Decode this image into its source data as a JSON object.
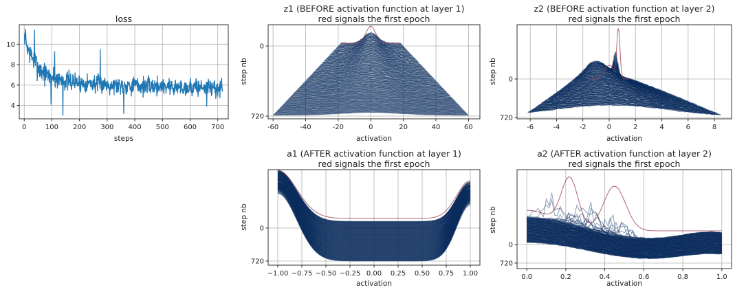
{
  "chart_data": [
    {
      "id": "loss",
      "type": "line",
      "title": "loss",
      "xlabel": "steps",
      "ylabel": "",
      "xlim": [
        -18,
        738
      ],
      "ylim": [
        2.7,
        11.9
      ],
      "xticks": [
        0,
        100,
        200,
        300,
        400,
        500,
        600,
        700
      ],
      "yticks": [
        4,
        6,
        8,
        10
      ],
      "grid": true,
      "series": [
        {
          "color": "#1f77b4",
          "x": [
            0,
            10,
            20,
            30,
            40,
            50,
            60,
            70,
            80,
            90,
            100,
            110,
            120,
            130,
            140,
            150,
            160,
            170,
            180,
            190,
            200,
            220,
            240,
            260,
            280,
            300,
            320,
            340,
            360,
            380,
            400,
            420,
            440,
            460,
            480,
            500,
            520,
            540,
            560,
            580,
            600,
            620,
            640,
            660,
            680,
            700,
            718
          ],
          "y": [
            10.8,
            9.8,
            9.1,
            8.7,
            8.2,
            7.8,
            7.4,
            7.2,
            7.0,
            6.9,
            6.8,
            6.7,
            6.6,
            6.5,
            6.5,
            6.4,
            6.4,
            6.3,
            6.3,
            6.3,
            6.2,
            6.2,
            6.2,
            6.1,
            6.1,
            6.1,
            6.0,
            6.0,
            6.0,
            6.0,
            6.0,
            5.9,
            5.9,
            5.9,
            5.9,
            5.9,
            5.9,
            5.8,
            5.8,
            5.8,
            5.8,
            5.8,
            5.8,
            5.8,
            5.7,
            5.7,
            5.7
          ],
          "spread": [
            0.6,
            1.0,
            1.2,
            1.3,
            1.4,
            1.3,
            1.3,
            1.2,
            1.2,
            1.2,
            1.2,
            1.2,
            1.1,
            1.1,
            1.1,
            1.1,
            1.1,
            1.0,
            1.0,
            1.0,
            1.0,
            1.0,
            1.0,
            1.0,
            1.0,
            1.0,
            1.0,
            1.0,
            1.0,
            1.0,
            1.0,
            1.0,
            1.0,
            1.0,
            1.0,
            1.0,
            1.0,
            1.0,
            1.0,
            1.0,
            1.0,
            1.0,
            1.0,
            1.0,
            1.0,
            1.0,
            1.0
          ],
          "spikes": [
            [
              5,
              11.5
            ],
            [
              37,
              11.4
            ],
            [
              110,
              9.3
            ],
            [
              275,
              9.5
            ],
            [
              140,
              3.0
            ],
            [
              360,
              3.2
            ],
            [
              97,
              4.1
            ],
            [
              660,
              3.9
            ]
          ]
        }
      ]
    },
    {
      "id": "z1",
      "type": "line",
      "title": "z1 (BEFORE activation function at layer 1)",
      "subtitle": "red signals the first epoch",
      "xlabel": "activation",
      "ylabel": "step nb",
      "xlim": [
        -63,
        67
      ],
      "xticks": [
        -60,
        -40,
        -20,
        0,
        20,
        40,
        60
      ],
      "ytick_labels": [
        "0",
        "720"
      ],
      "grid": true,
      "line_color": "#0c2d5e",
      "first_epoch_color": "#a0485a",
      "curves": 200,
      "halfwidth_first_to_last": [
        18,
        60
      ]
    },
    {
      "id": "z2",
      "type": "line",
      "title": "z2 (BEFORE activation function at layer 2)",
      "subtitle": "red signals the first epoch",
      "xlabel": "activation",
      "ylabel": "step nb",
      "xlim": [
        -7,
        9.3
      ],
      "xticks": [
        -6,
        -4,
        -2,
        0,
        2,
        4,
        6,
        8
      ],
      "ytick_labels": [
        "0",
        "720"
      ],
      "grid": true,
      "line_color": "#0c2d5e",
      "first_epoch_color": "#a0485a",
      "curves": 200,
      "first_epoch_range": [
        -1.5,
        1.5
      ],
      "final_range": [
        -6.2,
        8.5
      ]
    },
    {
      "id": "a1",
      "type": "line",
      "title": "a1 (AFTER activation function at layer 1)",
      "subtitle": "red signals the first epoch",
      "xlabel": "activation",
      "ylabel": "step nb",
      "xlim": [
        -1.1,
        1.1
      ],
      "xticks": [
        -1.0,
        -0.75,
        -0.5,
        -0.25,
        0.0,
        0.25,
        0.5,
        0.75,
        1.0
      ],
      "xtick_labels": [
        "−1.00",
        "−0.75",
        "−0.50",
        "−0.25",
        "0.00",
        "0.25",
        "0.50",
        "0.75",
        "1.00"
      ],
      "ytick_labels": [
        "0",
        "720"
      ],
      "grid": true,
      "line_color": "#0c2d5e",
      "first_epoch_color": "#a0485a",
      "curves": 200
    },
    {
      "id": "a2",
      "type": "line",
      "title": "a2 (AFTER activation function at layer 2)",
      "subtitle": "red signals the first epoch",
      "xlabel": "activation",
      "ylabel": "step nb",
      "xlim": [
        -0.05,
        1.05
      ],
      "xticks": [
        0.0,
        0.2,
        0.4,
        0.6,
        0.8,
        1.0
      ],
      "xtick_labels": [
        "0.0",
        "0.2",
        "0.4",
        "0.6",
        "0.8",
        "1.0"
      ],
      "ytick_labels": [
        "0",
        "720"
      ],
      "grid": true,
      "line_color": "#0c2d5e",
      "first_epoch_color": "#a0485a",
      "curves": 200
    }
  ]
}
